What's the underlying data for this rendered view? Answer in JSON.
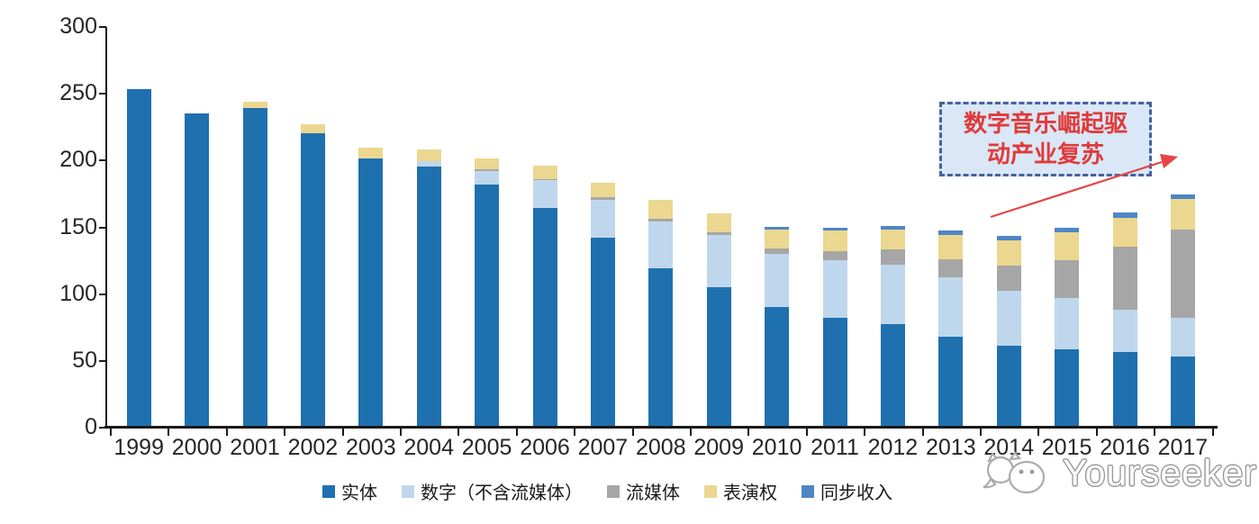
{
  "chart_data": {
    "type": "bar",
    "stacked": true,
    "title": "",
    "categories": [
      "1999",
      "2000",
      "2001",
      "2002",
      "2003",
      "2004",
      "2005",
      "2006",
      "2007",
      "2008",
      "2009",
      "2010",
      "2011",
      "2012",
      "2013",
      "2014",
      "2015",
      "2016",
      "2017"
    ],
    "series": [
      {
        "name": "实体",
        "color": "#1F70AE",
        "values": [
          252,
          234,
          238,
          219,
          200,
          194,
          181,
          163,
          141,
          118,
          104,
          89,
          81,
          76,
          67,
          60,
          57,
          55,
          52
        ]
      },
      {
        "name": "数字（不含流媒体）",
        "color": "#BFD7ED",
        "values": [
          0,
          0,
          0,
          0,
          0,
          4,
          10,
          21,
          28,
          35,
          39,
          40,
          43,
          45,
          44,
          41,
          39,
          32,
          29
        ]
      },
      {
        "name": "流媒体",
        "color": "#A6A6A6",
        "values": [
          0,
          0,
          0,
          0,
          0,
          0,
          1,
          1,
          2,
          2,
          2,
          4,
          7,
          11,
          14,
          19,
          28,
          47,
          66
        ]
      },
      {
        "name": "表演权",
        "color": "#EBD78F",
        "values": [
          0,
          0,
          5,
          7,
          8,
          9,
          8,
          10,
          11,
          14,
          14,
          14,
          15,
          15,
          18,
          19,
          21,
          22,
          23
        ]
      },
      {
        "name": "同步收入",
        "color": "#4E87C6",
        "values": [
          0,
          0,
          0,
          0,
          0,
          0,
          0,
          0,
          0,
          0,
          0,
          2,
          2,
          3,
          3,
          3,
          3,
          4,
          3
        ]
      }
    ],
    "xlabel": "",
    "ylabel": "",
    "ylim": [
      0,
      300
    ],
    "yticks": [
      0,
      50,
      100,
      150,
      200,
      250,
      300
    ],
    "grid": false,
    "legend_position": "bottom"
  },
  "annotation": {
    "lines": [
      "数字音乐崛起驱",
      "动产业复苏"
    ],
    "text_color": "#E03A3A",
    "box_fill": "#D9E7F6",
    "border_color": "#45619E",
    "arrow_color": "#E64545"
  },
  "axis": {
    "line_color": "#1A1A1A",
    "label_color": "#262626"
  },
  "watermark": {
    "text": "Yourseeker"
  }
}
